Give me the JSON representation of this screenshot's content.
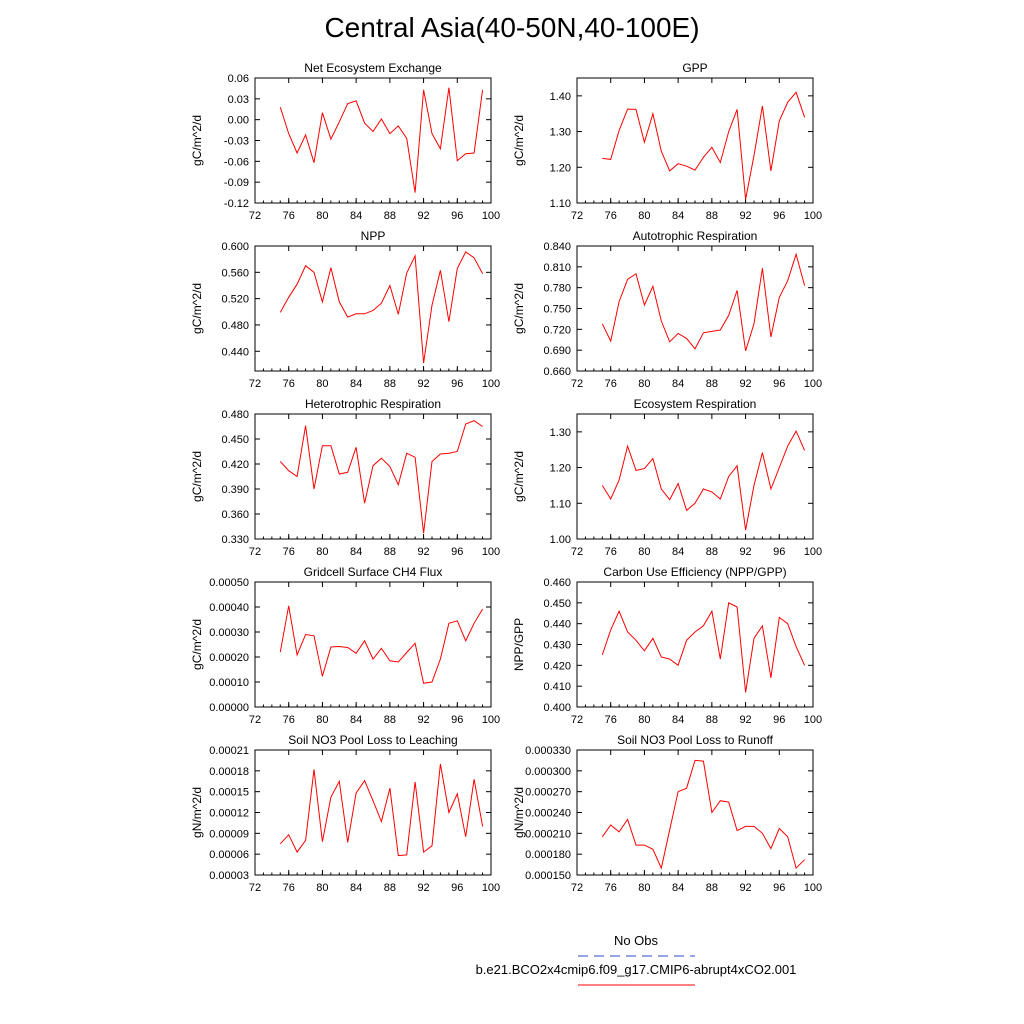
{
  "title": "Central Asia(40-50N,40-100E)",
  "colors": {
    "model": "#ff0000",
    "obs": "#3344cc"
  },
  "legend": [
    {
      "label": "No Obs",
      "style": "dashed",
      "color": "#3344cc"
    },
    {
      "label": "b.e21.BCO2x4cmip6.f09_g17.CMIP6-abrupt4xCO2.001",
      "style": "solid",
      "color": "#ff0000"
    }
  ],
  "chart_data": [
    {
      "type": "line",
      "title": "Net Ecosystem Exchange",
      "ylabel": "gC/m^2/d",
      "xlim": [
        72,
        100
      ],
      "xticks": [
        72,
        76,
        80,
        84,
        88,
        92,
        96,
        100
      ],
      "xtick_labels": [
        "72",
        "76",
        "80",
        "84",
        "88",
        "92",
        "96",
        "100"
      ],
      "ylim": [
        -0.12,
        0.06
      ],
      "yticks": [
        -0.12,
        -0.09,
        -0.06,
        -0.03,
        0.0,
        0.03,
        0.06
      ],
      "ytick_labels": [
        "-0.12",
        "-0.09",
        "-0.06",
        "-0.03",
        "0.00",
        "0.03",
        "0.06"
      ],
      "x": [
        75,
        76,
        77,
        78,
        79,
        80,
        81,
        82,
        83,
        84,
        85,
        86,
        87,
        88,
        89,
        90,
        91,
        92,
        93,
        94,
        95,
        96,
        97,
        98,
        99
      ],
      "series": [
        {
          "name": "b.e21.BCO2x4cmip6.f09_g17.CMIP6-abrupt4xCO2.001",
          "values": [
            0.018,
            -0.02,
            -0.048,
            -0.022,
            -0.062,
            0.01,
            -0.028,
            -0.003,
            0.023,
            0.027,
            -0.005,
            -0.017,
            0.001,
            -0.02,
            -0.009,
            -0.027,
            -0.105,
            0.043,
            -0.02,
            -0.042,
            0.046,
            -0.059,
            -0.049,
            -0.048,
            0.043
          ]
        }
      ]
    },
    {
      "type": "line",
      "title": "GPP",
      "ylabel": "gC/m^2/d",
      "xlim": [
        72,
        100
      ],
      "xticks": [
        72,
        76,
        80,
        84,
        88,
        92,
        96,
        100
      ],
      "xtick_labels": [
        "72",
        "76",
        "80",
        "84",
        "88",
        "92",
        "96",
        "100"
      ],
      "ylim": [
        1.1,
        1.45
      ],
      "yticks": [
        1.1,
        1.2,
        1.3,
        1.4
      ],
      "ytick_labels": [
        "1.10",
        "1.20",
        "1.30",
        "1.40"
      ],
      "x": [
        75,
        76,
        77,
        78,
        79,
        80,
        81,
        82,
        83,
        84,
        85,
        86,
        87,
        88,
        89,
        90,
        91,
        92,
        93,
        94,
        95,
        96,
        97,
        98,
        99
      ],
      "series": [
        {
          "name": "b.e21.BCO2x4cmip6.f09_g17.CMIP6-abrupt4xCO2.001",
          "values": [
            1.225,
            1.222,
            1.303,
            1.363,
            1.362,
            1.27,
            1.35,
            1.245,
            1.19,
            1.21,
            1.203,
            1.192,
            1.228,
            1.256,
            1.213,
            1.3,
            1.362,
            1.11,
            1.233,
            1.372,
            1.19,
            1.33,
            1.382,
            1.41,
            1.34
          ]
        }
      ]
    },
    {
      "type": "line",
      "title": "NPP",
      "ylabel": "gC/m^2/d",
      "xlim": [
        72,
        100
      ],
      "xticks": [
        72,
        76,
        80,
        84,
        88,
        92,
        96,
        100
      ],
      "xtick_labels": [
        "72",
        "76",
        "80",
        "84",
        "88",
        "92",
        "96",
        "100"
      ],
      "ylim": [
        0.41,
        0.6
      ],
      "yticks": [
        0.44,
        0.48,
        0.52,
        0.56,
        0.6
      ],
      "ytick_labels": [
        "0.440",
        "0.480",
        "0.520",
        "0.560",
        "0.600"
      ],
      "x": [
        75,
        76,
        77,
        78,
        79,
        80,
        81,
        82,
        83,
        84,
        85,
        86,
        87,
        88,
        89,
        90,
        91,
        92,
        93,
        94,
        95,
        96,
        97,
        98,
        99
      ],
      "series": [
        {
          "name": "b.e21.BCO2x4cmip6.f09_g17.CMIP6-abrupt4xCO2.001",
          "values": [
            0.499,
            0.522,
            0.542,
            0.57,
            0.56,
            0.515,
            0.567,
            0.515,
            0.492,
            0.497,
            0.497,
            0.502,
            0.513,
            0.54,
            0.496,
            0.559,
            0.585,
            0.422,
            0.51,
            0.563,
            0.485,
            0.566,
            0.591,
            0.582,
            0.558
          ]
        }
      ]
    },
    {
      "type": "line",
      "title": "Autotrophic Respiration",
      "ylabel": "gC/m^2/d",
      "xlim": [
        72,
        100
      ],
      "xticks": [
        72,
        76,
        80,
        84,
        88,
        92,
        96,
        100
      ],
      "xtick_labels": [
        "72",
        "76",
        "80",
        "84",
        "88",
        "92",
        "96",
        "100"
      ],
      "ylim": [
        0.66,
        0.84
      ],
      "yticks": [
        0.66,
        0.69,
        0.72,
        0.75,
        0.78,
        0.81,
        0.84
      ],
      "ytick_labels": [
        "0.660",
        "0.690",
        "0.720",
        "0.750",
        "0.780",
        "0.810",
        "0.840"
      ],
      "x": [
        75,
        76,
        77,
        78,
        79,
        80,
        81,
        82,
        83,
        84,
        85,
        86,
        87,
        88,
        89,
        90,
        91,
        92,
        93,
        94,
        95,
        96,
        97,
        98,
        99
      ],
      "series": [
        {
          "name": "b.e21.BCO2x4cmip6.f09_g17.CMIP6-abrupt4xCO2.001",
          "values": [
            0.728,
            0.703,
            0.76,
            0.792,
            0.8,
            0.755,
            0.782,
            0.732,
            0.702,
            0.714,
            0.707,
            0.692,
            0.715,
            0.717,
            0.719,
            0.74,
            0.776,
            0.689,
            0.728,
            0.808,
            0.709,
            0.766,
            0.79,
            0.828,
            0.783
          ]
        }
      ]
    },
    {
      "type": "line",
      "title": "Heterotrophic Respiration",
      "ylabel": "gC/m^2/d",
      "xlim": [
        72,
        100
      ],
      "xticks": [
        72,
        76,
        80,
        84,
        88,
        92,
        96,
        100
      ],
      "xtick_labels": [
        "72",
        "76",
        "80",
        "84",
        "88",
        "92",
        "96",
        "100"
      ],
      "ylim": [
        0.33,
        0.48
      ],
      "yticks": [
        0.33,
        0.36,
        0.39,
        0.42,
        0.45,
        0.48
      ],
      "ytick_labels": [
        "0.330",
        "0.360",
        "0.390",
        "0.420",
        "0.450",
        "0.480"
      ],
      "x": [
        75,
        76,
        77,
        78,
        79,
        80,
        81,
        82,
        83,
        84,
        85,
        86,
        87,
        88,
        89,
        90,
        91,
        92,
        93,
        94,
        95,
        96,
        97,
        98,
        99
      ],
      "series": [
        {
          "name": "b.e21.BCO2x4cmip6.f09_g17.CMIP6-abrupt4xCO2.001",
          "values": [
            0.423,
            0.412,
            0.405,
            0.466,
            0.39,
            0.442,
            0.442,
            0.408,
            0.41,
            0.44,
            0.373,
            0.418,
            0.427,
            0.417,
            0.395,
            0.433,
            0.428,
            0.337,
            0.423,
            0.432,
            0.433,
            0.435,
            0.468,
            0.472,
            0.465
          ]
        }
      ]
    },
    {
      "type": "line",
      "title": "Ecosystem Respiration",
      "ylabel": "gC/m^2/d",
      "xlim": [
        72,
        100
      ],
      "xticks": [
        72,
        76,
        80,
        84,
        88,
        92,
        96,
        100
      ],
      "xtick_labels": [
        "72",
        "76",
        "80",
        "84",
        "88",
        "92",
        "96",
        "100"
      ],
      "ylim": [
        1.0,
        1.35
      ],
      "yticks": [
        1.0,
        1.1,
        1.2,
        1.3
      ],
      "ytick_labels": [
        "1.00",
        "1.10",
        "1.20",
        "1.30"
      ],
      "x": [
        75,
        76,
        77,
        78,
        79,
        80,
        81,
        82,
        83,
        84,
        85,
        86,
        87,
        88,
        89,
        90,
        91,
        92,
        93,
        94,
        95,
        96,
        97,
        98,
        99
      ],
      "series": [
        {
          "name": "b.e21.BCO2x4cmip6.f09_g17.CMIP6-abrupt4xCO2.001",
          "values": [
            1.15,
            1.112,
            1.165,
            1.26,
            1.192,
            1.197,
            1.225,
            1.14,
            1.11,
            1.155,
            1.08,
            1.1,
            1.14,
            1.132,
            1.112,
            1.175,
            1.205,
            1.025,
            1.15,
            1.242,
            1.14,
            1.2,
            1.26,
            1.302,
            1.248
          ]
        }
      ]
    },
    {
      "type": "line",
      "title": "Gridcell Surface CH4 Flux",
      "ylabel": "gC/m^2/d",
      "xlim": [
        72,
        100
      ],
      "xticks": [
        72,
        76,
        80,
        84,
        88,
        92,
        96,
        100
      ],
      "xtick_labels": [
        "72",
        "76",
        "80",
        "84",
        "88",
        "92",
        "96",
        "100"
      ],
      "ylim": [
        0.0,
        0.0005
      ],
      "yticks": [
        0.0,
        0.0001,
        0.0002,
        0.0003,
        0.0004,
        0.0005
      ],
      "ytick_labels": [
        "0.00000",
        "0.00010",
        "0.00020",
        "0.00030",
        "0.00040",
        "0.00050"
      ],
      "x": [
        75,
        76,
        77,
        78,
        79,
        80,
        81,
        82,
        83,
        84,
        85,
        86,
        87,
        88,
        89,
        90,
        91,
        92,
        93,
        94,
        95,
        96,
        97,
        98,
        99
      ],
      "series": [
        {
          "name": "b.e21.BCO2x4cmip6.f09_g17.CMIP6-abrupt4xCO2.001",
          "values": [
            0.00022,
            0.000405,
            0.000208,
            0.00029,
            0.000285,
            0.000123,
            0.00024,
            0.000242,
            0.000238,
            0.000215,
            0.000265,
            0.000192,
            0.000235,
            0.000185,
            0.00018,
            0.000218,
            0.000255,
            9.5e-05,
            0.0001,
            0.000192,
            0.000335,
            0.000345,
            0.000265,
            0.000335,
            0.000392
          ]
        }
      ]
    },
    {
      "type": "line",
      "title": "Carbon Use Efficiency (NPP/GPP)",
      "ylabel": "NPP/GPP",
      "xlim": [
        72,
        100
      ],
      "xticks": [
        72,
        76,
        80,
        84,
        88,
        92,
        96,
        100
      ],
      "xtick_labels": [
        "72",
        "76",
        "80",
        "84",
        "88",
        "92",
        "96",
        "100"
      ],
      "ylim": [
        0.4,
        0.46
      ],
      "yticks": [
        0.4,
        0.41,
        0.42,
        0.43,
        0.44,
        0.45,
        0.46
      ],
      "ytick_labels": [
        "0.400",
        "0.410",
        "0.420",
        "0.430",
        "0.440",
        "0.450",
        "0.460"
      ],
      "x": [
        75,
        76,
        77,
        78,
        79,
        80,
        81,
        82,
        83,
        84,
        85,
        86,
        87,
        88,
        89,
        90,
        91,
        92,
        93,
        94,
        95,
        96,
        97,
        98,
        99
      ],
      "series": [
        {
          "name": "b.e21.BCO2x4cmip6.f09_g17.CMIP6-abrupt4xCO2.001",
          "values": [
            0.425,
            0.437,
            0.446,
            0.436,
            0.432,
            0.427,
            0.433,
            0.424,
            0.423,
            0.42,
            0.432,
            0.436,
            0.439,
            0.446,
            0.423,
            0.45,
            0.448,
            0.407,
            0.433,
            0.439,
            0.414,
            0.443,
            0.44,
            0.429,
            0.42
          ]
        }
      ]
    },
    {
      "type": "line",
      "title": "Soil NO3 Pool Loss to Leaching",
      "ylabel": "gN/m^2/d",
      "xlim": [
        72,
        100
      ],
      "xticks": [
        72,
        76,
        80,
        84,
        88,
        92,
        96,
        100
      ],
      "xtick_labels": [
        "72",
        "76",
        "80",
        "84",
        "88",
        "92",
        "96",
        "100"
      ],
      "ylim": [
        3e-05,
        0.00021
      ],
      "yticks": [
        3e-05,
        6e-05,
        9e-05,
        0.00012,
        0.00015,
        0.00018,
        0.00021
      ],
      "ytick_labels": [
        "0.00003",
        "0.00006",
        "0.00009",
        "0.00012",
        "0.00015",
        "0.00018",
        "0.00021"
      ],
      "x": [
        75,
        76,
        77,
        78,
        79,
        80,
        81,
        82,
        83,
        84,
        85,
        86,
        87,
        88,
        89,
        90,
        91,
        92,
        93,
        94,
        95,
        96,
        97,
        98,
        99
      ],
      "series": [
        {
          "name": "b.e21.BCO2x4cmip6.f09_g17.CMIP6-abrupt4xCO2.001",
          "values": [
            7.5e-05,
            8.8e-05,
            6.3e-05,
            8e-05,
            0.000182,
            7.8e-05,
            0.000142,
            0.000165,
            7.7e-05,
            0.000148,
            0.000166,
            0.000137,
            0.000107,
            0.000155,
            5.8e-05,
            5.9e-05,
            0.000164,
            6.3e-05,
            7.2e-05,
            0.00019,
            0.00012,
            0.000147,
            8.5e-05,
            0.000168,
            0.0001
          ]
        }
      ]
    },
    {
      "type": "line",
      "title": "Soil NO3 Pool Loss to Runoff",
      "ylabel": "gN/m^2/d",
      "xlim": [
        72,
        100
      ],
      "xticks": [
        72,
        76,
        80,
        84,
        88,
        92,
        96,
        100
      ],
      "xtick_labels": [
        "72",
        "76",
        "80",
        "84",
        "88",
        "92",
        "96",
        "100"
      ],
      "ylim": [
        0.00015,
        0.00033
      ],
      "yticks": [
        0.00015,
        0.00018,
        0.00021,
        0.00024,
        0.00027,
        0.0003,
        0.00033
      ],
      "ytick_labels": [
        "0.000150",
        "0.000180",
        "0.000210",
        "0.000240",
        "0.000270",
        "0.000300",
        "0.000330"
      ],
      "x": [
        75,
        76,
        77,
        78,
        79,
        80,
        81,
        82,
        83,
        84,
        85,
        86,
        87,
        88,
        89,
        90,
        91,
        92,
        93,
        94,
        95,
        96,
        97,
        98,
        99
      ],
      "series": [
        {
          "name": "b.e21.BCO2x4cmip6.f09_g17.CMIP6-abrupt4xCO2.001",
          "values": [
            0.000205,
            0.000222,
            0.000212,
            0.00023,
            0.000193,
            0.000193,
            0.000187,
            0.00016,
            0.000215,
            0.00027,
            0.000275,
            0.000315,
            0.000314,
            0.00024,
            0.000257,
            0.000255,
            0.000214,
            0.00022,
            0.00022,
            0.00021,
            0.000188,
            0.000217,
            0.000205,
            0.00016,
            0.000172
          ]
        }
      ]
    }
  ]
}
